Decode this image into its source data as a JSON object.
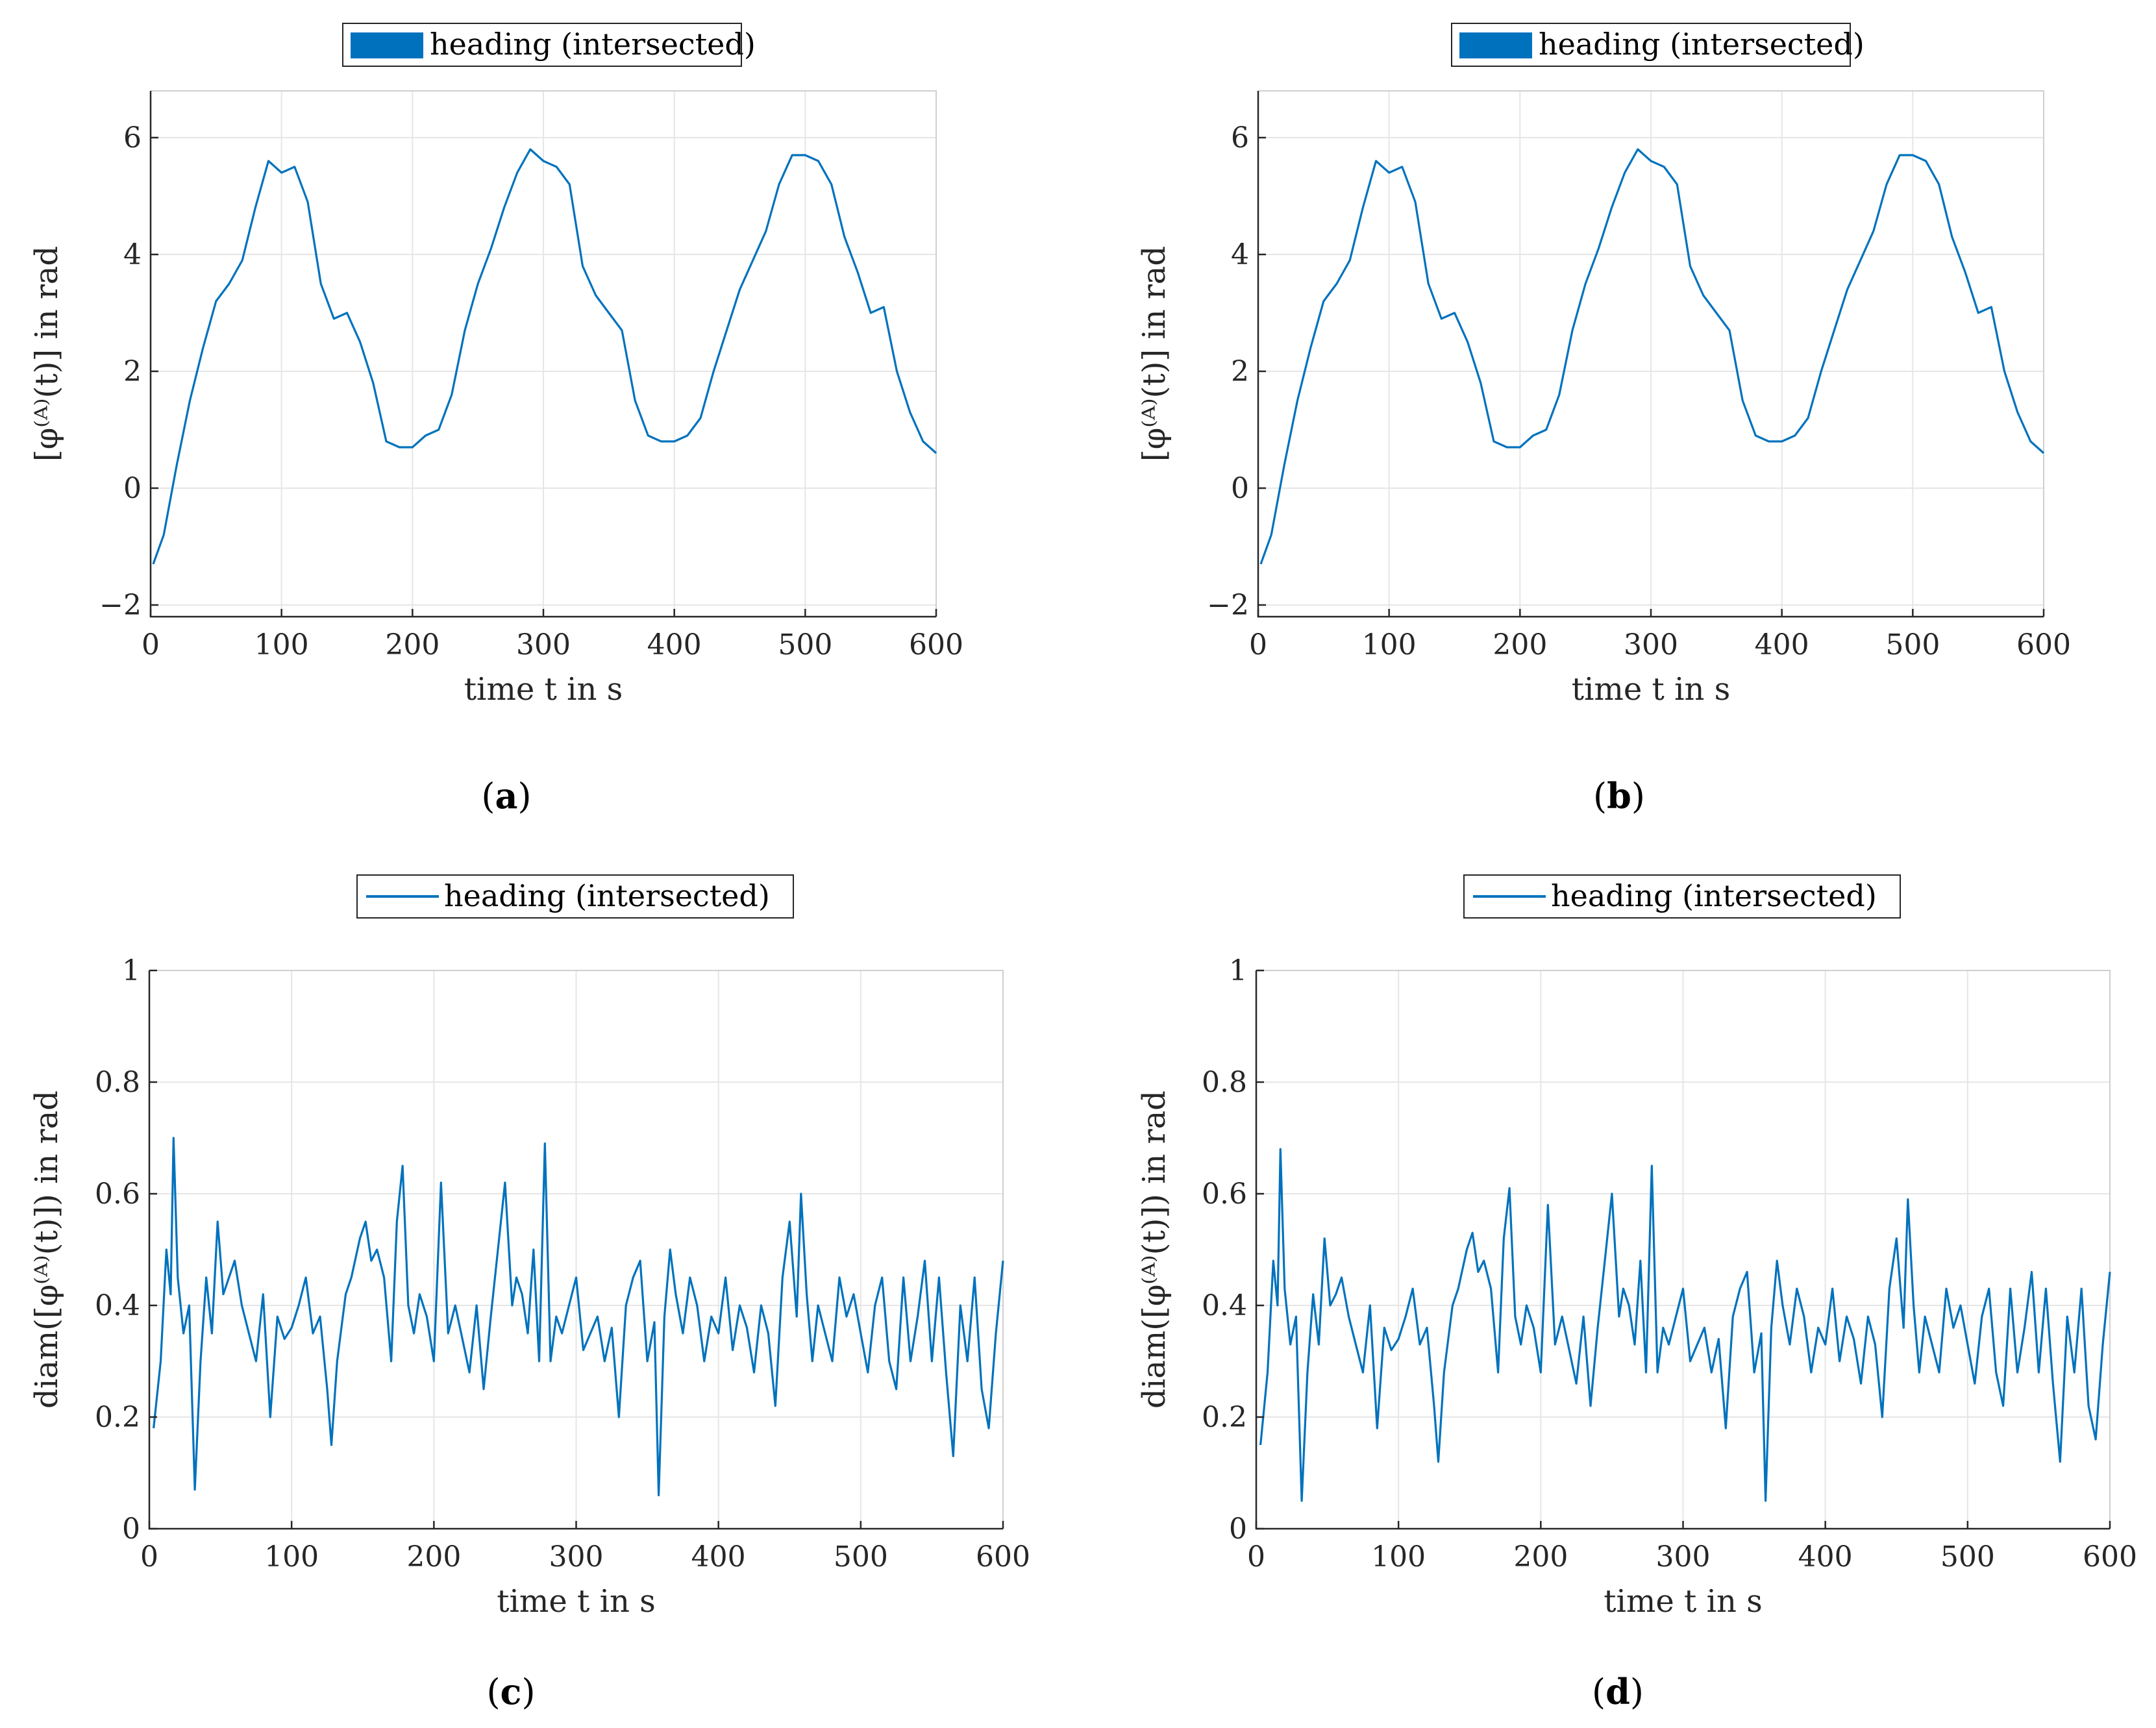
{
  "colors": {
    "series": "#0072BD",
    "axis": "#262626",
    "grid": "#e6e6e6"
  },
  "chart_data": [
    {
      "id": "a",
      "type": "line",
      "caption_letter": "a",
      "legend": "heading (intersected)",
      "legend_style": "patch",
      "xlabel": "time t in s",
      "ylabel": "[φ⁽ᴬ⁾(t)] in rad",
      "xlim": [
        0,
        600
      ],
      "ylim": [
        -2.2,
        6.8
      ],
      "xticks": [
        "0",
        "100",
        "200",
        "300",
        "400",
        "500",
        "600"
      ],
      "xtick_values": [
        0,
        100,
        200,
        300,
        400,
        500,
        600
      ],
      "yticks": [
        "−2",
        "0",
        "2",
        "4",
        "6"
      ],
      "ytick_values": [
        -2,
        0,
        2,
        4,
        6
      ],
      "grid": true,
      "series": [
        {
          "name": "heading (intersected)",
          "x": [
            2,
            10,
            20,
            30,
            40,
            50,
            60,
            70,
            80,
            90,
            100,
            110,
            120,
            130,
            140,
            150,
            160,
            170,
            180,
            190,
            200,
            210,
            220,
            230,
            240,
            250,
            260,
            270,
            280,
            290,
            300,
            310,
            320,
            330,
            340,
            350,
            360,
            370,
            380,
            390,
            400,
            410,
            420,
            430,
            440,
            450,
            460,
            470,
            480,
            490,
            500,
            510,
            520,
            530,
            540,
            550,
            560,
            570,
            580,
            590,
            600
          ],
          "values": [
            -1.3,
            -0.8,
            0.4,
            1.5,
            2.4,
            3.2,
            3.5,
            3.9,
            4.8,
            5.6,
            5.4,
            5.5,
            4.9,
            3.5,
            2.9,
            3.0,
            2.5,
            1.8,
            0.8,
            0.7,
            0.7,
            0.9,
            1.0,
            1.6,
            2.7,
            3.5,
            4.1,
            4.8,
            5.4,
            5.8,
            5.6,
            5.5,
            5.2,
            3.8,
            3.3,
            3.0,
            2.7,
            1.5,
            0.9,
            0.8,
            0.8,
            0.9,
            1.2,
            2.0,
            2.7,
            3.4,
            3.9,
            4.4,
            5.2,
            5.7,
            5.7,
            5.6,
            5.2,
            4.3,
            3.7,
            3.0,
            3.1,
            2.0,
            1.3,
            0.8,
            0.6
          ]
        }
      ]
    },
    {
      "id": "b",
      "type": "line",
      "caption_letter": "b",
      "legend": "heading (intersected)",
      "legend_style": "patch",
      "xlabel": "time t in s",
      "ylabel": "[φ⁽ᴬ⁾(t)] in rad",
      "xlim": [
        0,
        600
      ],
      "ylim": [
        -2.2,
        6.8
      ],
      "xticks": [
        "0",
        "100",
        "200",
        "300",
        "400",
        "500",
        "600"
      ],
      "xtick_values": [
        0,
        100,
        200,
        300,
        400,
        500,
        600
      ],
      "yticks": [
        "−2",
        "0",
        "2",
        "4",
        "6"
      ],
      "ytick_values": [
        -2,
        0,
        2,
        4,
        6
      ],
      "grid": true,
      "series": [
        {
          "name": "heading (intersected)",
          "x": [
            2,
            10,
            20,
            30,
            40,
            50,
            60,
            70,
            80,
            90,
            100,
            110,
            120,
            130,
            140,
            150,
            160,
            170,
            180,
            190,
            200,
            210,
            220,
            230,
            240,
            250,
            260,
            270,
            280,
            290,
            300,
            310,
            320,
            330,
            340,
            350,
            360,
            370,
            380,
            390,
            400,
            410,
            420,
            430,
            440,
            450,
            460,
            470,
            480,
            490,
            500,
            510,
            520,
            530,
            540,
            550,
            560,
            570,
            580,
            590,
            600
          ],
          "values": [
            -1.3,
            -0.8,
            0.4,
            1.5,
            2.4,
            3.2,
            3.5,
            3.9,
            4.8,
            5.6,
            5.4,
            5.5,
            4.9,
            3.5,
            2.9,
            3.0,
            2.5,
            1.8,
            0.8,
            0.7,
            0.7,
            0.9,
            1.0,
            1.6,
            2.7,
            3.5,
            4.1,
            4.8,
            5.4,
            5.8,
            5.6,
            5.5,
            5.2,
            3.8,
            3.3,
            3.0,
            2.7,
            1.5,
            0.9,
            0.8,
            0.8,
            0.9,
            1.2,
            2.0,
            2.7,
            3.4,
            3.9,
            4.4,
            5.2,
            5.7,
            5.7,
            5.6,
            5.2,
            4.3,
            3.7,
            3.0,
            3.1,
            2.0,
            1.3,
            0.8,
            0.6
          ]
        }
      ]
    },
    {
      "id": "c",
      "type": "line",
      "caption_letter": "c",
      "legend": "heading (intersected)",
      "legend_style": "line",
      "xlabel": "time t in s",
      "ylabel": "diam([φ⁽ᴬ⁾(t)]) in rad",
      "xlim": [
        0,
        600
      ],
      "ylim": [
        0,
        1
      ],
      "xticks": [
        "0",
        "100",
        "200",
        "300",
        "400",
        "500",
        "600"
      ],
      "xtick_values": [
        0,
        100,
        200,
        300,
        400,
        500,
        600
      ],
      "yticks": [
        "0",
        "0.2",
        "0.4",
        "0.6",
        "0.8",
        "1"
      ],
      "ytick_values": [
        0,
        0.2,
        0.4,
        0.6,
        0.8,
        1
      ],
      "grid": true,
      "series": [
        {
          "name": "heading (intersected)",
          "x": [
            3,
            8,
            12,
            15,
            17,
            20,
            24,
            28,
            32,
            36,
            40,
            44,
            48,
            52,
            56,
            60,
            65,
            70,
            75,
            80,
            85,
            90,
            95,
            100,
            105,
            110,
            115,
            120,
            125,
            128,
            132,
            138,
            142,
            148,
            152,
            156,
            160,
            165,
            170,
            174,
            178,
            182,
            186,
            190,
            195,
            200,
            205,
            210,
            215,
            220,
            225,
            230,
            235,
            240,
            245,
            250,
            255,
            258,
            262,
            266,
            270,
            274,
            278,
            282,
            286,
            290,
            295,
            300,
            305,
            310,
            315,
            320,
            325,
            330,
            335,
            340,
            345,
            350,
            355,
            358,
            362,
            366,
            370,
            375,
            380,
            385,
            390,
            395,
            400,
            405,
            410,
            415,
            420,
            425,
            430,
            435,
            440,
            445,
            450,
            455,
            458,
            462,
            466,
            470,
            475,
            480,
            485,
            490,
            495,
            500,
            505,
            510,
            515,
            520,
            525,
            530,
            535,
            540,
            545,
            550,
            555,
            560,
            565,
            570,
            575,
            580,
            585,
            590,
            595,
            600
          ],
          "values": [
            0.18,
            0.3,
            0.5,
            0.42,
            0.7,
            0.45,
            0.35,
            0.4,
            0.07,
            0.3,
            0.45,
            0.35,
            0.55,
            0.42,
            0.45,
            0.48,
            0.4,
            0.35,
            0.3,
            0.42,
            0.2,
            0.38,
            0.34,
            0.36,
            0.4,
            0.45,
            0.35,
            0.38,
            0.25,
            0.15,
            0.3,
            0.42,
            0.45,
            0.52,
            0.55,
            0.48,
            0.5,
            0.45,
            0.3,
            0.55,
            0.65,
            0.4,
            0.35,
            0.42,
            0.38,
            0.3,
            0.62,
            0.35,
            0.4,
            0.34,
            0.28,
            0.4,
            0.25,
            0.38,
            0.5,
            0.62,
            0.4,
            0.45,
            0.42,
            0.35,
            0.5,
            0.3,
            0.69,
            0.3,
            0.38,
            0.35,
            0.4,
            0.45,
            0.32,
            0.35,
            0.38,
            0.3,
            0.36,
            0.2,
            0.4,
            0.45,
            0.48,
            0.3,
            0.37,
            0.06,
            0.38,
            0.5,
            0.42,
            0.35,
            0.45,
            0.4,
            0.3,
            0.38,
            0.35,
            0.45,
            0.32,
            0.4,
            0.36,
            0.28,
            0.4,
            0.35,
            0.22,
            0.45,
            0.55,
            0.38,
            0.6,
            0.42,
            0.3,
            0.4,
            0.35,
            0.3,
            0.45,
            0.38,
            0.42,
            0.35,
            0.28,
            0.4,
            0.45,
            0.3,
            0.25,
            0.45,
            0.3,
            0.38,
            0.48,
            0.3,
            0.45,
            0.28,
            0.13,
            0.4,
            0.3,
            0.45,
            0.25,
            0.18,
            0.35,
            0.48
          ]
        }
      ]
    },
    {
      "id": "d",
      "type": "line",
      "caption_letter": "d",
      "legend": "heading (intersected)",
      "legend_style": "line",
      "xlabel": "time t in s",
      "ylabel": "diam([φ⁽ᴬ⁾(t)]) in rad",
      "xlim": [
        0,
        600
      ],
      "ylim": [
        0,
        1
      ],
      "xticks": [
        "0",
        "100",
        "200",
        "300",
        "400",
        "500",
        "600"
      ],
      "xtick_values": [
        0,
        100,
        200,
        300,
        400,
        500,
        600
      ],
      "yticks": [
        "0",
        "0.2",
        "0.4",
        "0.6",
        "0.8",
        "1"
      ],
      "ytick_values": [
        0,
        0.2,
        0.4,
        0.6,
        0.8,
        1
      ],
      "grid": true,
      "series": [
        {
          "name": "heading (intersected)",
          "x": [
            3,
            8,
            12,
            15,
            17,
            20,
            24,
            28,
            32,
            36,
            40,
            44,
            48,
            52,
            56,
            60,
            65,
            70,
            75,
            80,
            85,
            90,
            95,
            100,
            105,
            110,
            115,
            120,
            125,
            128,
            132,
            138,
            142,
            148,
            152,
            156,
            160,
            165,
            170,
            174,
            178,
            182,
            186,
            190,
            195,
            200,
            205,
            210,
            215,
            220,
            225,
            230,
            235,
            240,
            245,
            250,
            255,
            258,
            262,
            266,
            270,
            274,
            278,
            282,
            286,
            290,
            295,
            300,
            305,
            310,
            315,
            320,
            325,
            330,
            335,
            340,
            345,
            350,
            355,
            358,
            362,
            366,
            370,
            375,
            380,
            385,
            390,
            395,
            400,
            405,
            410,
            415,
            420,
            425,
            430,
            435,
            440,
            445,
            450,
            455,
            458,
            462,
            466,
            470,
            475,
            480,
            485,
            490,
            495,
            500,
            505,
            510,
            515,
            520,
            525,
            530,
            535,
            540,
            545,
            550,
            555,
            560,
            565,
            570,
            575,
            580,
            585,
            590,
            595,
            600
          ],
          "values": [
            0.15,
            0.28,
            0.48,
            0.4,
            0.68,
            0.43,
            0.33,
            0.38,
            0.05,
            0.28,
            0.42,
            0.33,
            0.52,
            0.4,
            0.42,
            0.45,
            0.38,
            0.33,
            0.28,
            0.4,
            0.18,
            0.36,
            0.32,
            0.34,
            0.38,
            0.43,
            0.33,
            0.36,
            0.22,
            0.12,
            0.28,
            0.4,
            0.43,
            0.5,
            0.53,
            0.46,
            0.48,
            0.43,
            0.28,
            0.52,
            0.61,
            0.38,
            0.33,
            0.4,
            0.36,
            0.28,
            0.58,
            0.33,
            0.38,
            0.32,
            0.26,
            0.38,
            0.22,
            0.36,
            0.48,
            0.6,
            0.38,
            0.43,
            0.4,
            0.33,
            0.48,
            0.28,
            0.65,
            0.28,
            0.36,
            0.33,
            0.38,
            0.43,
            0.3,
            0.33,
            0.36,
            0.28,
            0.34,
            0.18,
            0.38,
            0.43,
            0.46,
            0.28,
            0.35,
            0.05,
            0.36,
            0.48,
            0.4,
            0.33,
            0.43,
            0.38,
            0.28,
            0.36,
            0.33,
            0.43,
            0.3,
            0.38,
            0.34,
            0.26,
            0.38,
            0.33,
            0.2,
            0.43,
            0.52,
            0.36,
            0.59,
            0.4,
            0.28,
            0.38,
            0.33,
            0.28,
            0.43,
            0.36,
            0.4,
            0.33,
            0.26,
            0.38,
            0.43,
            0.28,
            0.22,
            0.43,
            0.28,
            0.36,
            0.46,
            0.28,
            0.43,
            0.26,
            0.12,
            0.38,
            0.28,
            0.43,
            0.22,
            0.16,
            0.33,
            0.46
          ]
        }
      ]
    }
  ]
}
